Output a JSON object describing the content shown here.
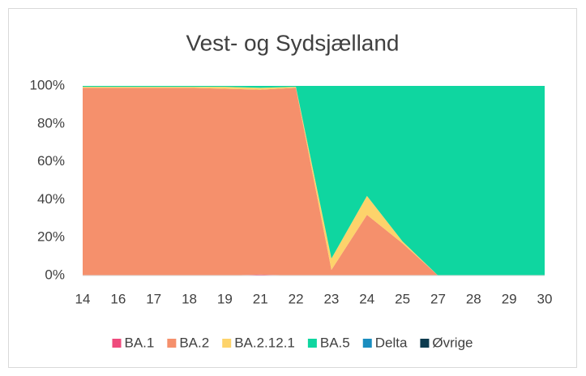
{
  "chart_data": {
    "type": "stacked_area",
    "title": "Vest- og Sydsjælland",
    "categories": [
      "14",
      "16",
      "17",
      "18",
      "19",
      "21",
      "22",
      "23",
      "24",
      "25",
      "27",
      "28",
      "29",
      "30"
    ],
    "series": [
      {
        "name": "BA.1",
        "color": "#ef4b7d",
        "values": [
          0,
          0,
          0,
          0,
          0,
          0.5,
          0,
          0,
          0,
          0,
          0,
          0,
          0,
          0
        ]
      },
      {
        "name": "BA.2",
        "color": "#f5906c",
        "values": [
          99,
          99,
          99,
          99,
          98.5,
          97.5,
          99,
          3,
          32,
          17,
          0,
          0,
          0,
          0
        ]
      },
      {
        "name": "BA.2.12.1",
        "color": "#fdd36b",
        "values": [
          0.5,
          0.5,
          0.5,
          0.5,
          1,
          1,
          0.5,
          6,
          10,
          1,
          0,
          0,
          0,
          0
        ]
      },
      {
        "name": "BA.5",
        "color": "#0fd6a0",
        "values": [
          0.5,
          0.5,
          0.5,
          0.5,
          0.5,
          1,
          0.5,
          91,
          58,
          82,
          100,
          100,
          100,
          100
        ]
      },
      {
        "name": "Delta",
        "color": "#1a8dbf",
        "values": [
          0,
          0,
          0,
          0,
          0,
          0,
          0,
          0,
          0,
          0,
          0,
          0,
          0,
          0
        ]
      },
      {
        "name": "Øvrige",
        "color": "#0d3b4f",
        "values": [
          0,
          0,
          0,
          0,
          0,
          0,
          0,
          0,
          0,
          0,
          0,
          0,
          0,
          0
        ]
      }
    ],
    "ylim": [
      0,
      100
    ],
    "yticks": [
      {
        "value": 0,
        "label": "0%"
      },
      {
        "value": 20,
        "label": "20%"
      },
      {
        "value": 40,
        "label": "40%"
      },
      {
        "value": 60,
        "label": "60%"
      },
      {
        "value": 80,
        "label": "80%"
      },
      {
        "value": 100,
        "label": "100%"
      }
    ],
    "grid": false,
    "legend": "bottom"
  }
}
